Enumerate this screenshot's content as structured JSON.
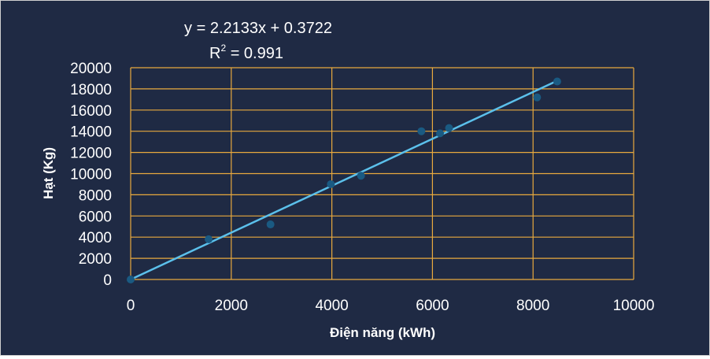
{
  "chart_data": {
    "type": "scatter",
    "title": "",
    "xlabel": "Điện năng (kWh)",
    "ylabel": "Hạt (Kg)",
    "xlim": [
      0,
      10000
    ],
    "ylim": [
      0,
      20000
    ],
    "xticks": [
      "0",
      "2000",
      "4000",
      "6000",
      "8000",
      "10000"
    ],
    "yticks": [
      "0",
      "2000",
      "4000",
      "6000",
      "8000",
      "10000",
      "12000",
      "14000",
      "16000",
      "18000",
      "20000"
    ],
    "grid": true,
    "points": [
      {
        "x": 0,
        "y": 0
      },
      {
        "x": 1550,
        "y": 3800
      },
      {
        "x": 2780,
        "y": 5200
      },
      {
        "x": 3980,
        "y": 9000
      },
      {
        "x": 4580,
        "y": 9800
      },
      {
        "x": 5780,
        "y": 14000
      },
      {
        "x": 6150,
        "y": 13800
      },
      {
        "x": 6330,
        "y": 14300
      },
      {
        "x": 8080,
        "y": 17200
      },
      {
        "x": 8480,
        "y": 18700
      }
    ],
    "trendline": {
      "slope": 2.2133,
      "intercept": 0.3722,
      "x_range": [
        0,
        8500
      ],
      "equation_label": "y = 2.2133x + 0.3722",
      "r2_prefix": "R",
      "r2_sup": "2",
      "r2_value": " = 0.991"
    },
    "colors": {
      "background": "#1f2a44",
      "grid": "#e8a93e",
      "trendline": "#5bc0eb",
      "marker": "#1a5a82",
      "text": "#ffffff"
    }
  }
}
